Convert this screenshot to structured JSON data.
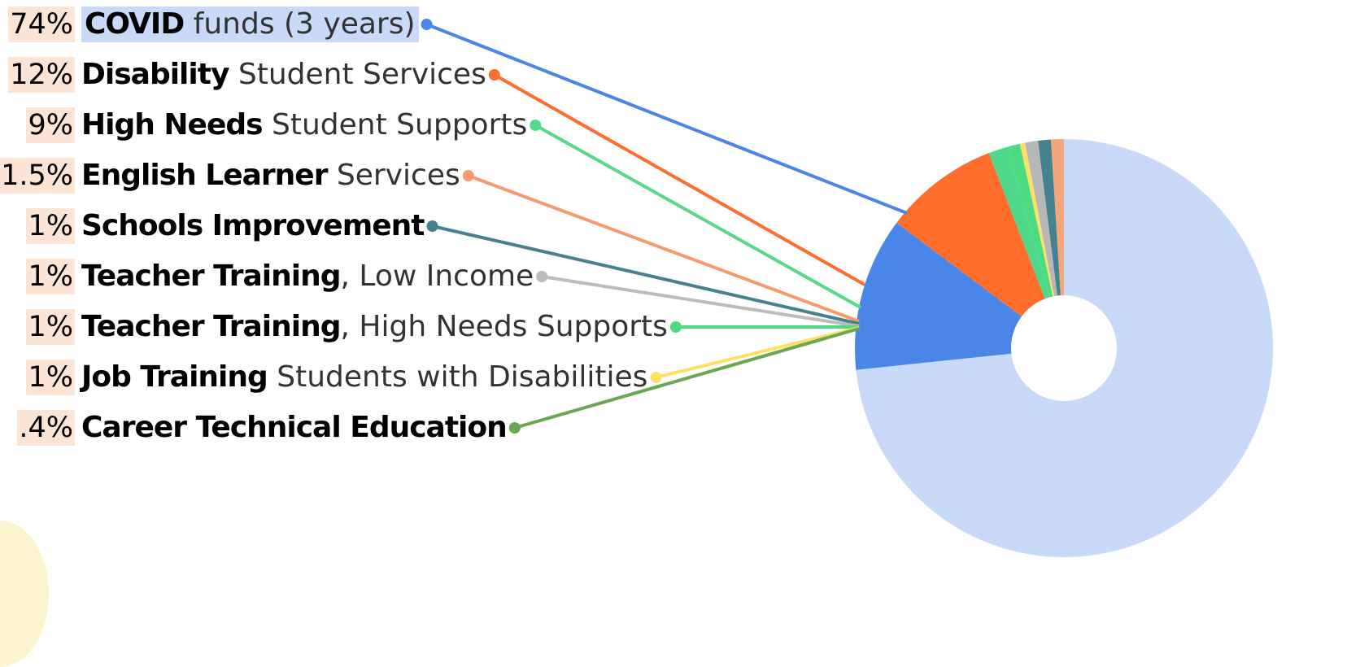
{
  "chart_data": {
    "type": "pie",
    "title": "",
    "colors": {
      "highlight": "#c9daf8",
      "percent_background": "#fce5d4"
    },
    "slices": [
      {
        "percent_label": "74%",
        "name_bold": "COVID",
        "name_rest": "funds (3 years)",
        "value": 74,
        "color": "#c9daf8",
        "line_color": "#4a86e8"
      },
      {
        "percent_label": "12%",
        "name_bold": "Disability",
        "name_rest": "Student Services",
        "value": 12,
        "color": "#4a86e8",
        "line_color": "#ff6d2d"
      },
      {
        "percent_label": "9%",
        "name_bold": "High Needs",
        "name_rest": "Student Supports",
        "value": 9,
        "color": "#ff6d2d",
        "line_color": "#57d98a"
      },
      {
        "percent_label": "1.5%",
        "name_bold": "English Learner",
        "name_rest": "Services",
        "value": 1.5,
        "color": "#4fd88a",
        "line_color": "#f79a6e"
      },
      {
        "percent_label": "1%",
        "name_bold": "Schools Improvement",
        "name_rest": "",
        "value": 1,
        "color": "#f4a57a",
        "line_color": "#45818e"
      },
      {
        "percent_label": "1%",
        "name_bold": "Teacher Training",
        "name_rest": ", Low Income",
        "value": 1,
        "color": "#45818e",
        "line_color": "#bcbcbc"
      },
      {
        "percent_label": "1%",
        "name_bold": "Teacher Training",
        "name_rest": ", High Needs Supports",
        "value": 1,
        "color": "#b7b7b7",
        "line_color": "#4ddb81"
      },
      {
        "percent_label": "1%",
        "name_bold": "Job Training",
        "name_rest": "Students with Disabilities",
        "value": 1,
        "color": "#4ddb81",
        "line_color": "#ffe066"
      },
      {
        "percent_label": ".4%",
        "name_bold": "Career Technical Education",
        "name_rest": "",
        "value": 0.4,
        "color": "#ffe066",
        "line_color": "#6aa84f"
      }
    ]
  }
}
